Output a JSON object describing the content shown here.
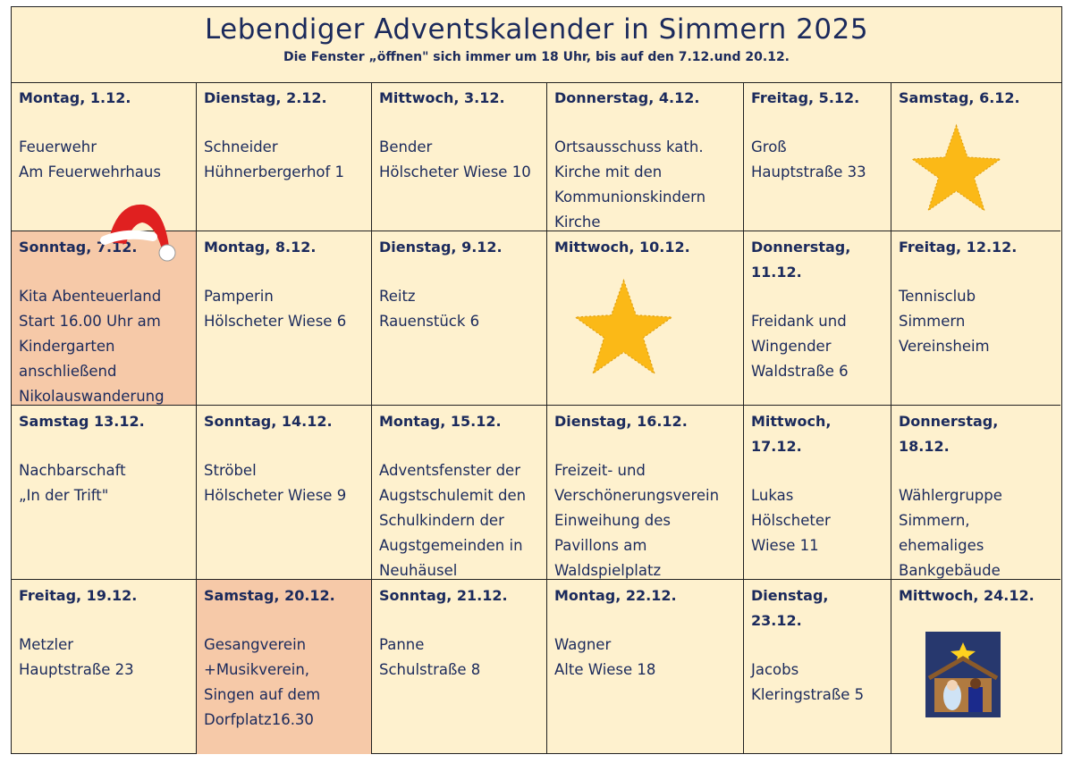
{
  "title": "Lebendiger Adventskalender in Simmern 2025",
  "subtitle": "Die Fenster „öffnen\" sich immer um 18 Uhr, bis auf den 7.12.und 20.12.",
  "colors": {
    "background": "#fef1ce",
    "highlight": "#f6c9a8",
    "text": "#1b2a5c",
    "star": "#fbb917"
  },
  "cells": [
    {
      "day": "Montag, 1.12.",
      "text": "Feuerwehr\nAm Feuerwehrhaus"
    },
    {
      "day": "Dienstag, 2.12.",
      "text": "Schneider\nHühnerbergerhof 1"
    },
    {
      "day": "Mittwoch, 3.12.",
      "text": "Bender\nHölscheter Wiese 10"
    },
    {
      "day": "Donnerstag, 4.12.",
      "text": " Ortsausschuss kath.\nKirche mit den\nKommunionskindern\nKirche"
    },
    {
      "day": "Freitag, 5.12.",
      "text": "Groß\nHauptstraße 33"
    },
    {
      "day": "Samstag, 6.12.",
      "text": "",
      "icon": "star-icon"
    },
    {
      "day": "Sonntag, 7.12.",
      "text": "Kita Abenteuerland\nStart 16.00 Uhr am\nKindergarten\nanschließend\nNikolauswanderung",
      "highlight": true,
      "icon": "santa-hat-icon"
    },
    {
      "day": "Montag, 8.12.",
      "text": "Pamperin\nHölscheter Wiese 6"
    },
    {
      "day": "Dienstag, 9.12.",
      "text": "Reitz\nRauenstück 6"
    },
    {
      "day": "Mittwoch, 10.12.",
      "text": "",
      "icon": "star-icon"
    },
    {
      "day": "Donnerstag, 11.12.",
      "text": "Freidank und\nWingender\nWaldstraße 6"
    },
    {
      "day": "Freitag, 12.12.",
      "text": "Tennisclub\nSimmern\nVereinsheim"
    },
    {
      "day": "Samstag 13.12.",
      "text": " Nachbarschaft\n„In der Trift\""
    },
    {
      "day": "Sonntag, 14.12.",
      "text": "Ströbel\nHölscheter Wiese 9"
    },
    {
      "day": "Montag, 15.12.",
      "text": "Adventsfenster der\nAugstschulemit den\nSchulkindern der\nAugstgemeinden in\nNeuhäusel"
    },
    {
      "day": "Dienstag, 16.12.",
      "text": "Freizeit- und\nVerschönerungsverein\nEinweihung des\nPavillons am\nWaldspielplatz"
    },
    {
      "day": "Mittwoch, 17.12.",
      "text": " Lukas\nHölscheter\nWiese 11"
    },
    {
      "day": "Donnerstag, 18.12.",
      "text": "Wählergruppe\nSimmern,\nehemaliges\nBankgebäude"
    },
    {
      "day": "Freitag, 19.12.",
      "text": "Metzler\nHauptstraße 23"
    },
    {
      "day": "Samstag, 20.12.",
      "text": "Gesangverein\n+Musikverein,\nSingen auf dem\nDorfplatz16.30",
      "highlight": true
    },
    {
      "day": "Sonntag, 21.12.",
      "text": "Panne\nSchulstraße 8"
    },
    {
      "day": "Montag, 22.12.",
      "text": "Wagner\nAlte Wiese 18"
    },
    {
      "day": "Dienstag, 23.12.",
      "text": "Jacobs\nKleringstraße 5"
    },
    {
      "day": "Mittwoch, 24.12.",
      "text": "",
      "icon": "nativity-icon"
    }
  ]
}
